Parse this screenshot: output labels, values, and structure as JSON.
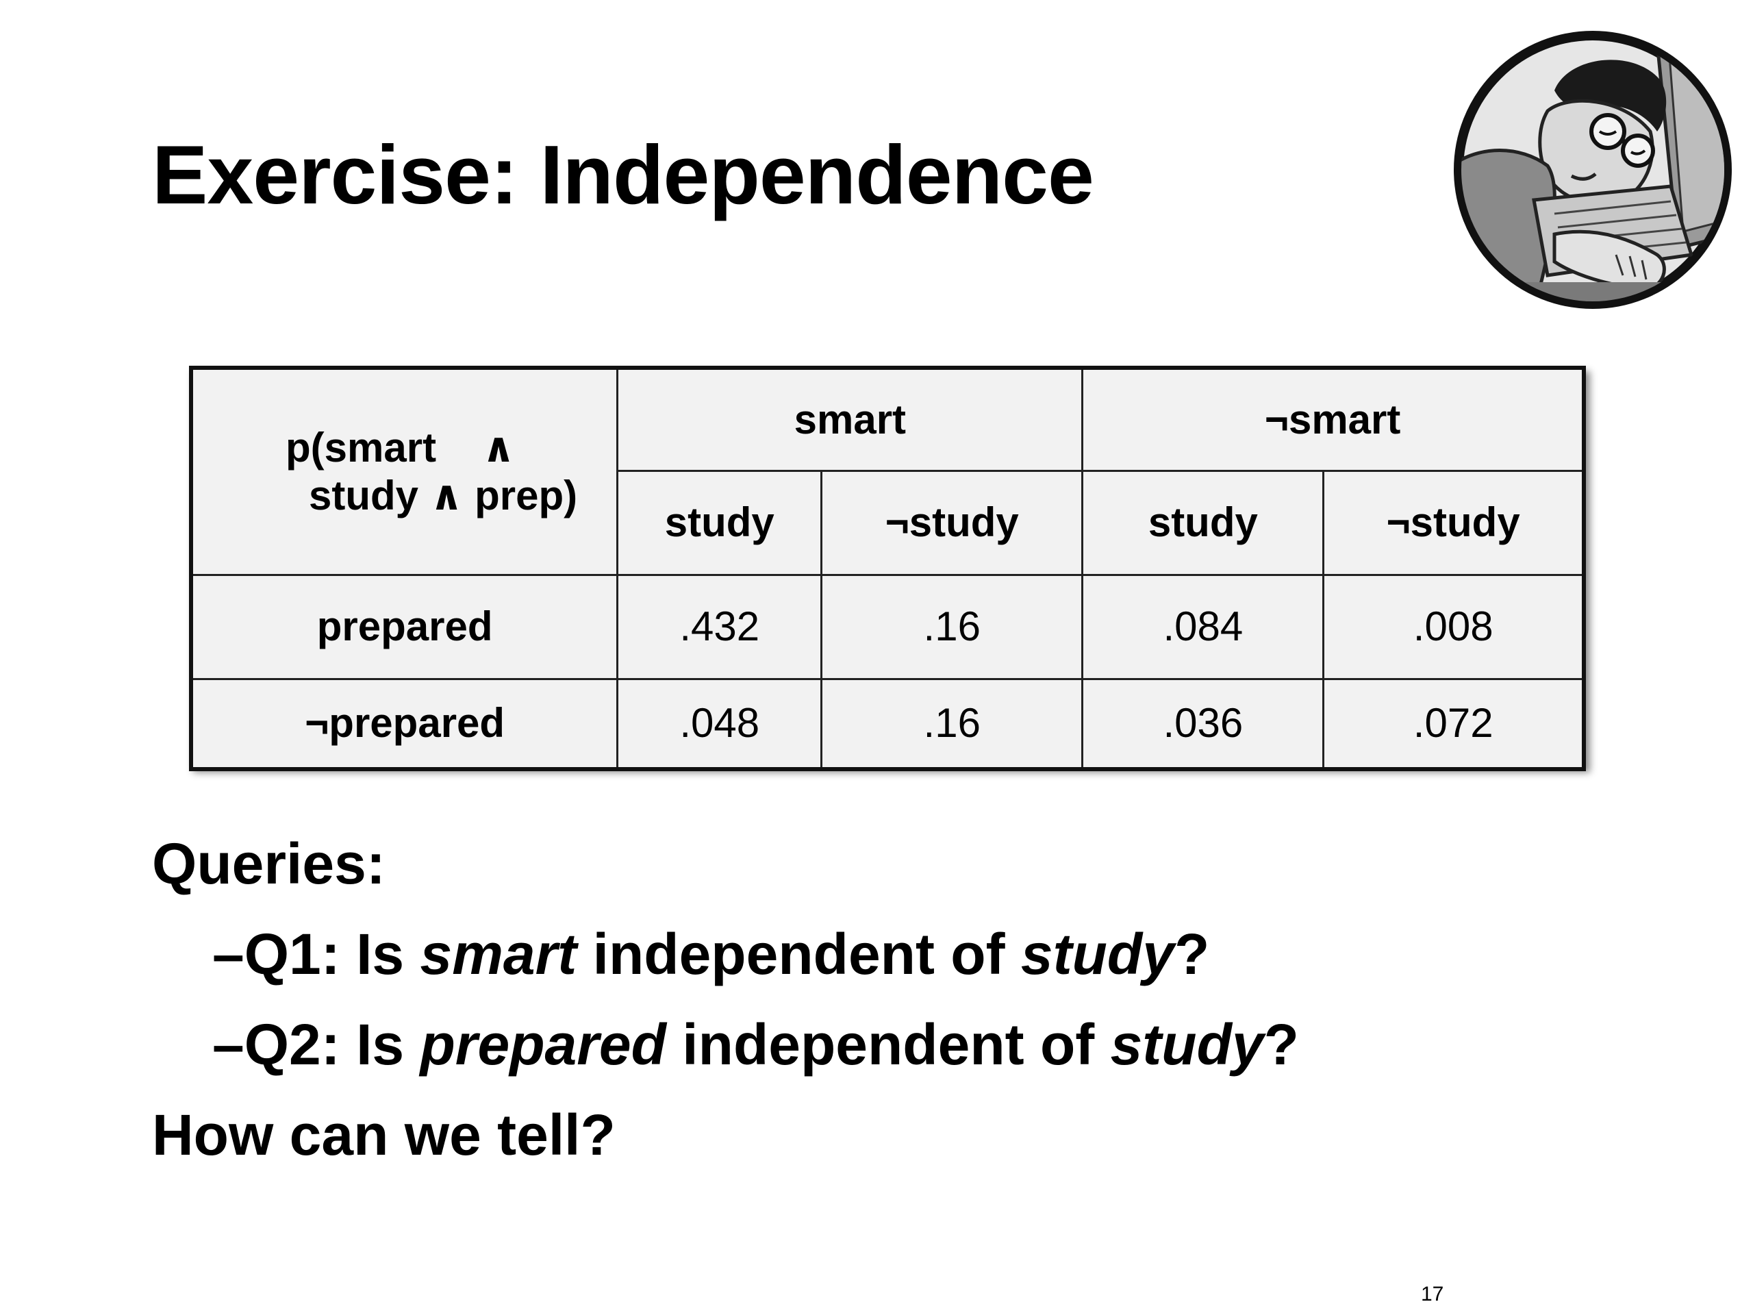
{
  "slide": {
    "title": "Exercise: Independence",
    "page_number": "17"
  },
  "table": {
    "corner_line1": "p(smart    ∧",
    "corner_line2": "study ∧ prep)",
    "col_groups": [
      "smart",
      "¬smart"
    ],
    "sub_cols": [
      "study",
      "¬study",
      "study",
      "¬study"
    ],
    "rows": [
      {
        "label": "prepared",
        "values": [
          ".432",
          ".16",
          ".084",
          ".008"
        ]
      },
      {
        "label": "¬prepared",
        "values": [
          ".048",
          ".16",
          ".036",
          ".072"
        ]
      }
    ]
  },
  "queries": {
    "heading": "Queries:",
    "q1": {
      "dash": "–",
      "prefix": "Q1: Is ",
      "var1": "smart",
      "middle": " independent of ",
      "var2": "study",
      "suffix": "?"
    },
    "q2": {
      "dash": "–",
      "prefix": "Q2: Is ",
      "var1": "prepared",
      "middle": " independent of ",
      "var2": "study",
      "suffix": "?"
    },
    "closing": "How can we tell?"
  },
  "mascot": {
    "icon": "sleeping-student-at-keyboard-icon"
  }
}
